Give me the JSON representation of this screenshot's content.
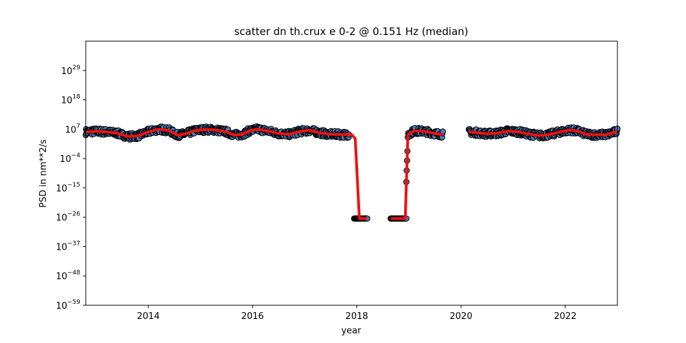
{
  "chart_data": {
    "type": "scatter",
    "title": "scatter dn th.crux e 0-2 @ 0.151 Hz (median)",
    "xlabel": "year",
    "ylabel": "PSD in nm**2/s",
    "yscale": "log",
    "xlim": [
      2012.8,
      2023.0
    ],
    "ylim_exponent": [
      -59,
      40
    ],
    "x_ticks": [
      2014,
      2016,
      2018,
      2020,
      2022
    ],
    "x_tick_labels": [
      "2014",
      "2016",
      "2018",
      "2020",
      "2022"
    ],
    "y_tick_exponents": [
      -59,
      -48,
      -37,
      -26,
      -15,
      -4,
      7,
      18,
      29
    ],
    "y_tick_labels": [
      "10",
      "10",
      "10",
      "10",
      "10",
      "10",
      "10",
      "10",
      "10"
    ],
    "y_tick_label_exponents": [
      "−59",
      "−48",
      "−37",
      "−26",
      "−15",
      "−4",
      "7",
      "18",
      "29"
    ],
    "grid": false,
    "legend": "none",
    "series": [
      {
        "kind": "scatter",
        "color": "#4a7bb7",
        "edgecolor": "#000000",
        "segments": [
          {
            "x_start": 2012.8,
            "x_end": 2017.85,
            "log10_level": 5.5,
            "log10_spread": 1.2
          },
          {
            "x_start": 2017.95,
            "x_end": 2018.2,
            "log10_level": -26.5,
            "log10_spread": 0.0
          },
          {
            "x_start": 2018.65,
            "x_end": 2018.95,
            "log10_level": -26.5,
            "log10_spread": 0.0
          },
          {
            "x_start": 2018.95,
            "x_end": 2019.65,
            "log10_level": 5.5,
            "log10_spread": 1.2
          },
          {
            "x_start": 2020.15,
            "x_end": 2023.0,
            "log10_level": 5.5,
            "log10_spread": 1.2
          }
        ]
      },
      {
        "kind": "line",
        "color": "#ee1111",
        "points": [
          [
            2012.8,
            6.0
          ],
          [
            2013.0,
            6.2
          ],
          [
            2013.2,
            6.0
          ],
          [
            2013.4,
            5.5
          ],
          [
            2013.6,
            4.3
          ],
          [
            2013.8,
            4.5
          ],
          [
            2014.0,
            6.0
          ],
          [
            2014.2,
            7.0
          ],
          [
            2014.4,
            6.5
          ],
          [
            2014.55,
            4.8
          ],
          [
            2014.7,
            5.2
          ],
          [
            2014.9,
            6.5
          ],
          [
            2015.1,
            6.9
          ],
          [
            2015.3,
            6.7
          ],
          [
            2015.5,
            6.0
          ],
          [
            2015.65,
            4.8
          ],
          [
            2015.8,
            5.0
          ],
          [
            2015.95,
            6.5
          ],
          [
            2016.1,
            7.0
          ],
          [
            2016.3,
            6.3
          ],
          [
            2016.5,
            5.4
          ],
          [
            2016.7,
            5.1
          ],
          [
            2016.9,
            6.1
          ],
          [
            2017.1,
            6.6
          ],
          [
            2017.3,
            5.6
          ],
          [
            2017.5,
            5.1
          ],
          [
            2017.7,
            5.0
          ],
          [
            2017.9,
            5.0
          ],
          [
            2017.97,
            3.5
          ],
          [
            2018.05,
            -26.5
          ],
          [
            2018.2,
            -26.5
          ],
          [
            2018.65,
            -26.5
          ],
          [
            2018.93,
            -26.5
          ],
          [
            2018.98,
            5.0
          ],
          [
            2019.1,
            6.4
          ],
          [
            2019.3,
            6.2
          ],
          [
            2019.5,
            5.4
          ],
          [
            2019.65,
            5.0
          ],
          [
            2020.15,
            6.0
          ],
          [
            2020.3,
            5.7
          ],
          [
            2020.5,
            5.3
          ],
          [
            2020.7,
            5.5
          ],
          [
            2020.9,
            6.3
          ],
          [
            2021.1,
            6.0
          ],
          [
            2021.3,
            5.2
          ],
          [
            2021.5,
            4.6
          ],
          [
            2021.7,
            5.0
          ],
          [
            2021.9,
            6.0
          ],
          [
            2022.1,
            6.7
          ],
          [
            2022.25,
            6.2
          ],
          [
            2022.4,
            5.1
          ],
          [
            2022.6,
            4.9
          ],
          [
            2022.8,
            5.0
          ],
          [
            2023.0,
            6.2
          ]
        ]
      }
    ]
  }
}
